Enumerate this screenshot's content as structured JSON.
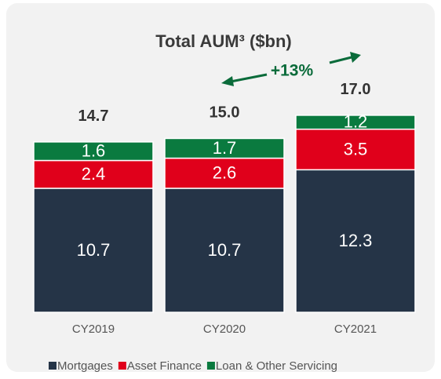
{
  "chart_data": {
    "type": "stacked_bar",
    "title": "Total AUM³ ($bn)",
    "annotation": "+13%",
    "categories": [
      "CY2019",
      "CY2020",
      "CY2021"
    ],
    "series": [
      {
        "name": "Mortgages",
        "color": "#253447",
        "values": [
          10.7,
          10.7,
          12.3
        ]
      },
      {
        "name": "Asset Finance",
        "color": "#e0001b",
        "values": [
          2.4,
          2.6,
          3.5
        ]
      },
      {
        "name": "Loan & Other Servicing",
        "color": "#0a7a3f",
        "values": [
          1.6,
          1.7,
          1.2
        ]
      }
    ],
    "totals": [
      14.7,
      15.0,
      17.0
    ],
    "totals_labels": [
      "14.7",
      "15.0",
      "17.0"
    ],
    "legend": "bottom"
  }
}
